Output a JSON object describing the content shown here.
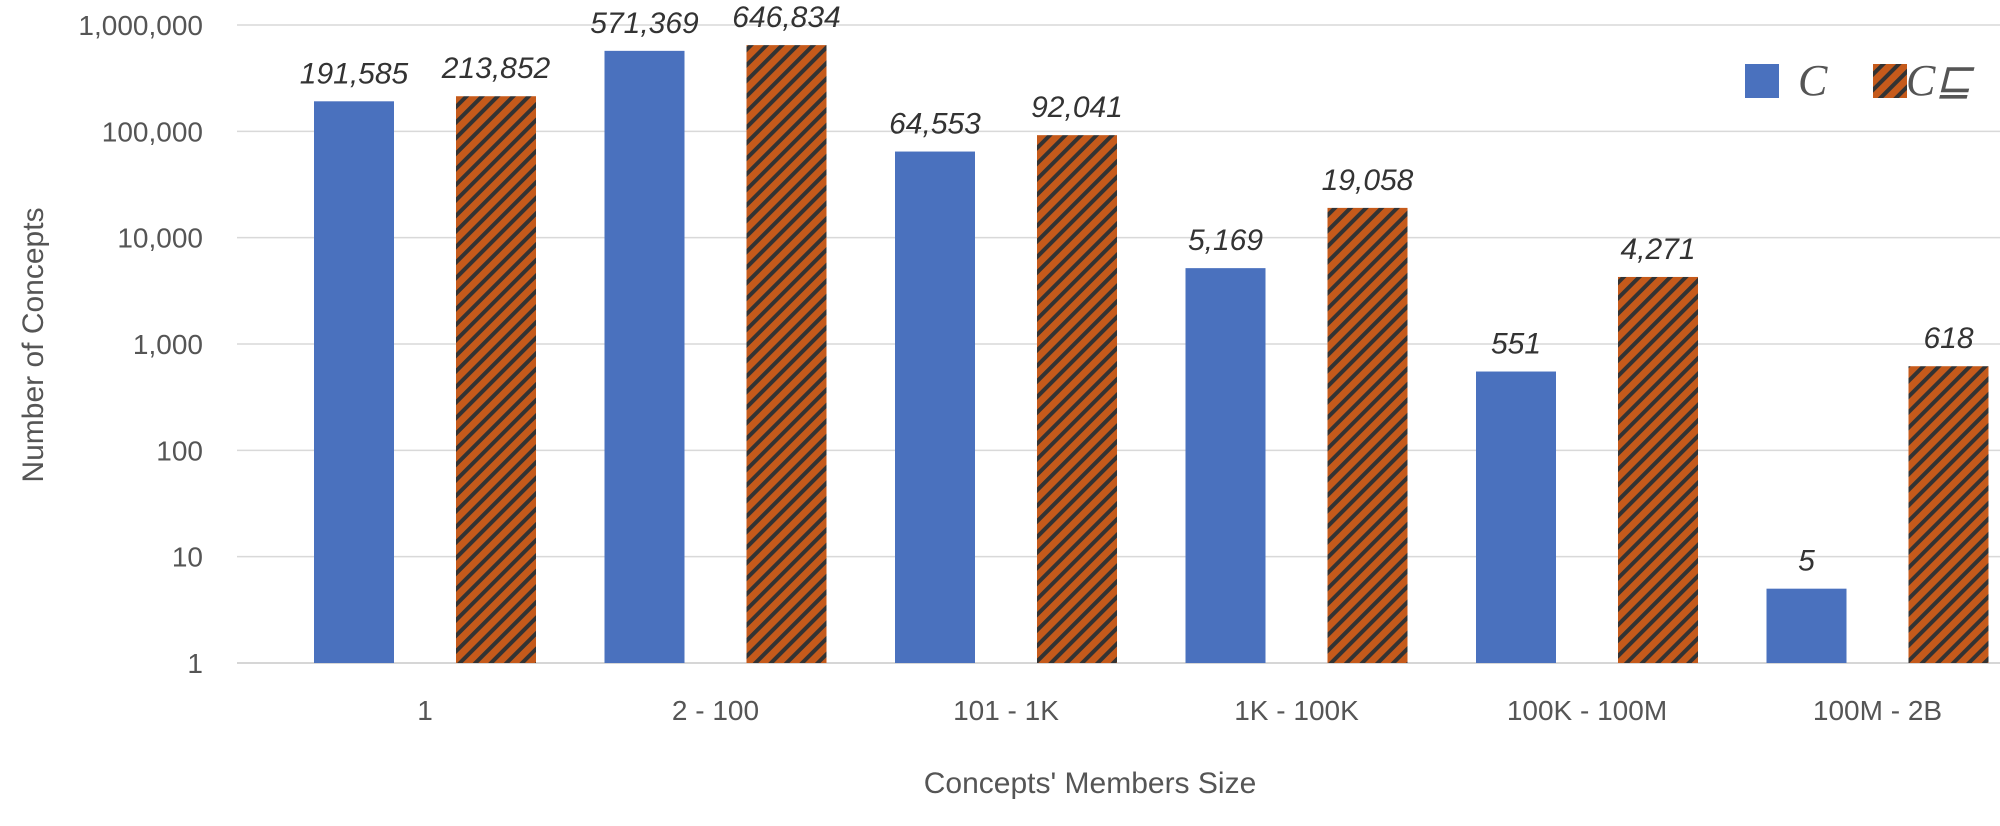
{
  "chart_data": {
    "type": "bar",
    "categories": [
      "1",
      "2 - 100",
      "101 - 1K",
      "1K - 100K",
      "100K - 100M",
      "100M - 2B"
    ],
    "series": [
      {
        "name": "C",
        "values": [
          191585,
          571369,
          64553,
          5169,
          551,
          5
        ],
        "data_labels": [
          "191,585",
          "571,369",
          "64,553",
          "5,169",
          "551",
          "5"
        ],
        "color": "#4a71be",
        "pattern": "solid"
      },
      {
        "name": "C⊑",
        "values": [
          213852,
          646834,
          92041,
          19058,
          4271,
          618
        ],
        "data_labels": [
          "213,852",
          "646,834",
          "92,041",
          "19,058",
          "4,271",
          "618"
        ],
        "color": "#c55a1b",
        "pattern": "diagonal-stripes"
      }
    ],
    "y_scale": "log",
    "ylim": [
      1,
      1000000
    ],
    "yticks": [
      1,
      10,
      100,
      1000,
      10000,
      100000,
      1000000
    ],
    "ytick_labels": [
      "1",
      "10",
      "100",
      "1,000",
      "10,000",
      "100,000",
      "1,000,000"
    ],
    "xlabel": "Concepts' Members Size",
    "ylabel": "Number of Concepts",
    "grid": true,
    "legend": "top-right"
  }
}
